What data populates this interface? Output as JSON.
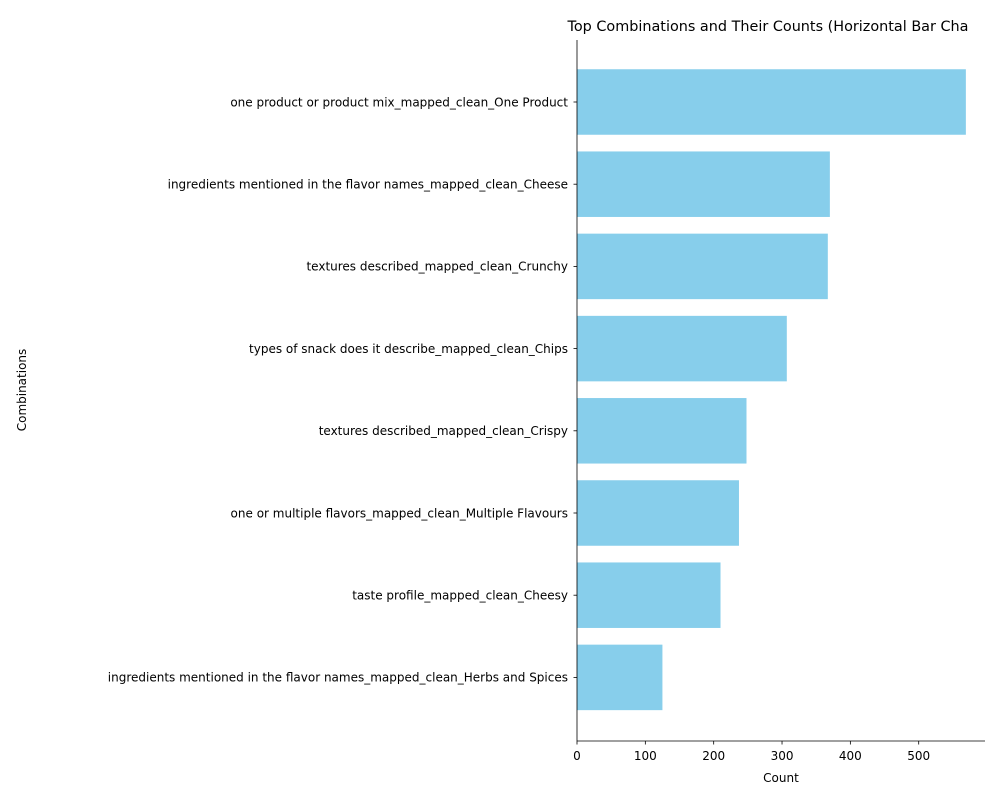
{
  "chart_data": {
    "type": "bar",
    "orientation": "horizontal",
    "title": "Top Combinations and Their Counts (Horizontal Bar Cha",
    "xlabel": "Count",
    "ylabel": "Combinations",
    "xlim": [
      0,
      597
    ],
    "xticks": [
      0,
      100,
      200,
      300,
      400,
      500
    ],
    "grid": false,
    "legend": "none",
    "bar_color": "#87ceeb",
    "categories": [
      "one product or product mix_mapped_clean_One Product",
      "ingredients mentioned in the flavor names_mapped_clean_Cheese",
      "textures described_mapped_clean_Crunchy",
      "types of snack does it describe_mapped_clean_Chips",
      "textures described_mapped_clean_Crispy",
      "one or multiple flavors_mapped_clean_Multiple Flavours",
      "taste profile_mapped_clean_Cheesy",
      "ingredients mentioned in the flavor names_mapped_clean_Herbs and Spices"
    ],
    "values": [
      569,
      370,
      367,
      307,
      248,
      237,
      210,
      125
    ]
  }
}
